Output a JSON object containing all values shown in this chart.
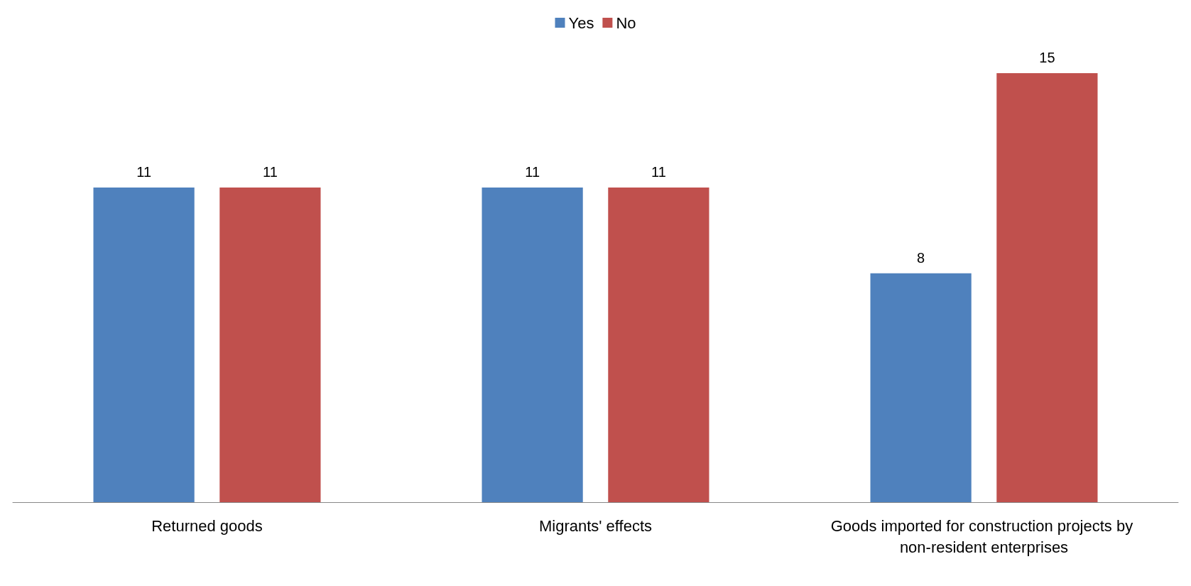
{
  "chart_data": {
    "type": "bar",
    "categories": [
      "Returned goods",
      "Migrants' effects",
      "Goods imported for construction projects by non-resident enterprises"
    ],
    "series": [
      {
        "name": "Yes",
        "color": "#4f81bd",
        "values": [
          11,
          11,
          8
        ]
      },
      {
        "name": "No",
        "color": "#c0504d",
        "values": [
          11,
          11,
          15
        ]
      }
    ],
    "data_labels": true,
    "legend": "top",
    "grid": false
  }
}
